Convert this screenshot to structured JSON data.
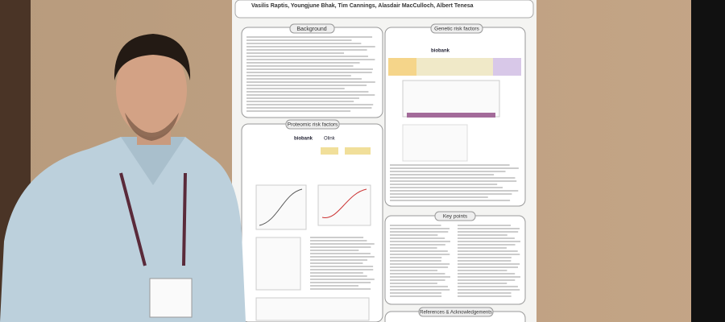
{
  "poster": {
    "authors": "Vasilis Raptis, Youngjune Bhak, Tim Cannings, Alasdair MacCulloch, Albert Tenesa",
    "sections": {
      "background": "Background",
      "genetic": "Genetic risk factors",
      "proteomic": "Proteomic risk factors",
      "key_points": "Key points",
      "references": "References & Acknowledgements"
    },
    "logos": {
      "biobank": "biobank",
      "olink": "Olink"
    }
  }
}
